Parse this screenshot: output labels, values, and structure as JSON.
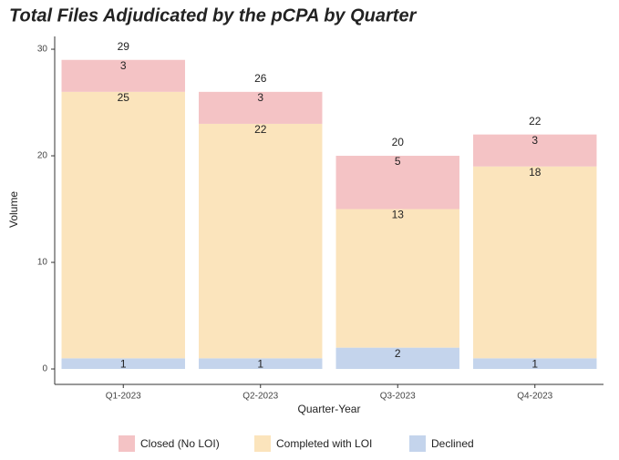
{
  "chart_data": {
    "type": "stacked_bar",
    "title": "Total Files Adjudicated by the pCPA by Quarter",
    "x_label": "Quarter-Year",
    "y_label": "Volume",
    "categories": [
      "Q1-2023",
      "Q2-2023",
      "Q3-2023",
      "Q4-2023"
    ],
    "series": [
      {
        "name": "Closed (No LOI)",
        "color": "#f4c3c5",
        "values": [
          3,
          3,
          5,
          3
        ]
      },
      {
        "name": "Completed with LOI",
        "color": "#fbe4bc",
        "values": [
          25,
          22,
          13,
          18
        ]
      },
      {
        "name": "Declined",
        "color": "#c4d4ec",
        "values": [
          1,
          1,
          2,
          1
        ]
      }
    ],
    "totals": [
      29,
      26,
      20,
      22
    ],
    "ylim": [
      -1.45,
      31.2
    ],
    "yticks": [
      0,
      10,
      20,
      30
    ],
    "grid": false,
    "legend": "bottom"
  }
}
